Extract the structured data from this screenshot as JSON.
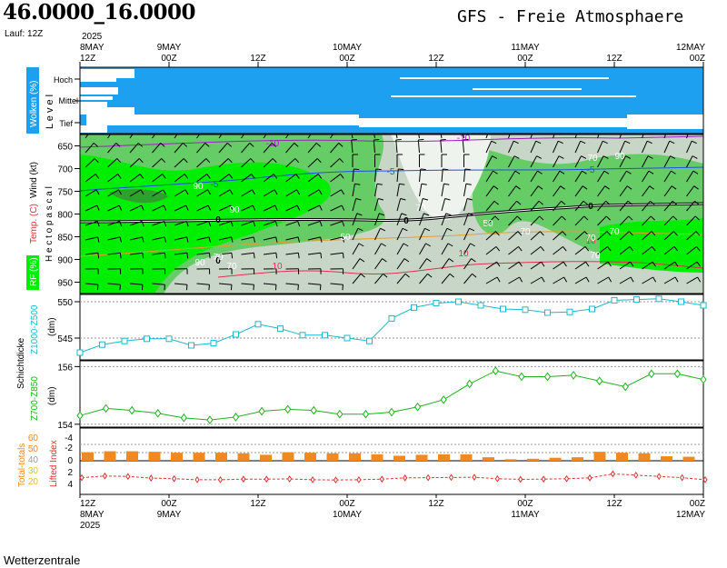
{
  "header": {
    "coords": "46.0000_16.0000",
    "run": "Lauf: 12Z",
    "model_title": "GFS - Freie Atmosphaere"
  },
  "footer": {
    "credit": "Wetterzentrale"
  },
  "time_axis": {
    "ticks": [
      {
        "top": "8MAY",
        "bottom": "12Z",
        "year": "2025"
      },
      {
        "top": "9MAY",
        "bottom": "00Z"
      },
      {
        "top": "",
        "bottom": "12Z"
      },
      {
        "top": "10MAY",
        "bottom": "00Z"
      },
      {
        "top": "",
        "bottom": "12Z"
      },
      {
        "top": "11MAY",
        "bottom": "00Z"
      },
      {
        "top": "",
        "bottom": "12Z"
      },
      {
        "top": "12MAY",
        "bottom": "00Z"
      }
    ]
  },
  "panels": {
    "clouds": {
      "label": "Wolken (%)",
      "level_label": "L e v e l",
      "levels": [
        "Hoch",
        "Mittel",
        "Tief"
      ]
    },
    "profile": {
      "wind_label": "Wind (kt)",
      "hpa_label": "H e c t o p a s c a l",
      "temp_label": "Temp. (C)",
      "rh_label": "RF (%)"
    },
    "thick500": {
      "title": "Schichtdicke",
      "label": "Z1000-Z500",
      "unit": "(dm)"
    },
    "thick850": {
      "label": "Z700-Z850",
      "unit": "(dm)"
    },
    "indices": {
      "tt_label": "Total-totals",
      "li_label": "Lifted Index"
    }
  },
  "colors": {
    "cloud": "#1ea0f0",
    "rh_high": "#00ee00",
    "rh_mid": "#66cc66",
    "rh_low": "#c8d6c8",
    "thick500": "#1db8c8",
    "thick850": "#20b020",
    "li_bar": "#f08a20",
    "tt_line": "#e03030"
  },
  "chart_data": [
    {
      "type": "heatmap",
      "name": "clouds",
      "x": [
        "8MAY 12Z",
        "9MAY 00Z",
        "9MAY 12Z",
        "10MAY 00Z",
        "10MAY 12Z",
        "11MAY 00Z",
        "11MAY 12Z",
        "12MAY 00Z"
      ],
      "ylabels": [
        "Hoch",
        "Mittel",
        "Tief"
      ]
    },
    {
      "type": "heatmap",
      "name": "profile",
      "yticks": [
        650,
        700,
        750,
        800,
        850,
        900,
        950
      ],
      "isotherm_labels": [
        "-10",
        "-10",
        "-5",
        "-5",
        "-5",
        "0",
        "0",
        "0",
        "0",
        "10",
        "10",
        "10"
      ],
      "rh_labels": [
        "90",
        "90",
        "70",
        "70",
        "70",
        "50",
        "50",
        "70",
        "70",
        "70",
        "70",
        "70",
        "90",
        "90"
      ]
    },
    {
      "type": "line",
      "name": "Z1000-Z500",
      "ylabel": "Z1000-Z500",
      "ylim": [
        542,
        551
      ],
      "yticks": [
        545,
        550
      ],
      "values": [
        543.0,
        544.1,
        544.6,
        544.9,
        544.9,
        544.0,
        544.3,
        545.5,
        546.9,
        546.3,
        545.4,
        545.4,
        545.0,
        544.6,
        547.7,
        549.2,
        549.8,
        550.0,
        549.5,
        549.0,
        548.9,
        548.5,
        548.6,
        549.0,
        550.2,
        550.3,
        550.4,
        550.0,
        549.5
      ]
    },
    {
      "type": "line",
      "name": "Z700-Z850",
      "ylabel": "Z700-Z850",
      "ylim": [
        153.9,
        156.2
      ],
      "yticks": [
        154,
        156
      ],
      "values": [
        154.3,
        154.55,
        154.48,
        154.38,
        154.22,
        154.15,
        154.25,
        154.45,
        154.52,
        154.48,
        154.35,
        154.35,
        154.42,
        154.6,
        154.85,
        155.4,
        155.85,
        155.65,
        155.65,
        155.7,
        155.5,
        155.3,
        155.75,
        155.75,
        155.55
      ]
    },
    {
      "type": "bar",
      "name": "Lifted Index",
      "yticks_top": [
        "4",
        "2",
        "0"
      ],
      "values": [
        1.7,
        1.9,
        1.9,
        1.8,
        1.6,
        1.6,
        1.6,
        1.5,
        1.2,
        1.7,
        1.6,
        1.5,
        1.5,
        1.3,
        1.0,
        1.2,
        1.3,
        1.3,
        0.7,
        0.3,
        0.4,
        0.6,
        0.7,
        1.8,
        1.6,
        1.5,
        0.9,
        0.8
      ]
    },
    {
      "type": "line",
      "name": "Total-totals",
      "ticks": [
        "60",
        "50",
        "40",
        "30",
        "20"
      ],
      "tt_values": [
        48.0,
        48.8,
        48.6,
        47.8,
        47.5,
        47.0,
        47.0,
        47.3,
        47.3,
        47.4,
        47.0,
        46.9,
        47.0,
        47.3,
        47.9,
        48.0,
        48.1,
        48.2,
        47.5,
        47.2,
        47.3,
        47.5,
        47.9,
        49.8,
        49.2,
        48.6,
        48.0,
        47.0
      ]
    }
  ]
}
